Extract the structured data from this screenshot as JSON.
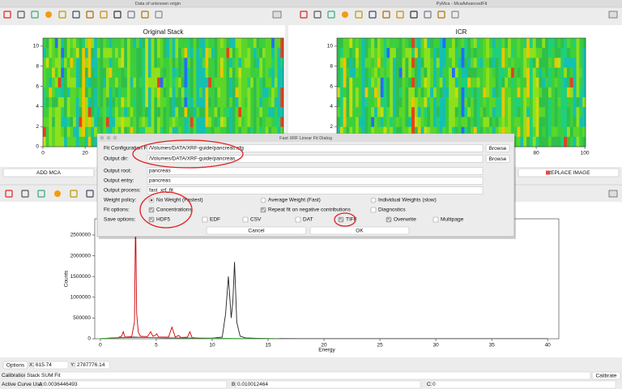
{
  "windows": {
    "left_title": "Data of unknown origin",
    "right_title": "PyMca - McaAdvancedFit"
  },
  "stack_plots": [
    {
      "title": "Original Stack",
      "xlim": [
        0,
        114
      ],
      "xticks": [
        0,
        20
      ],
      "ylim": [
        0,
        10.8
      ],
      "yticks": [
        0,
        2,
        4,
        6,
        8,
        10
      ]
    },
    {
      "title": "ICR",
      "xlim": [
        -2,
        100.3
      ],
      "xticks": [
        80,
        100
      ],
      "ylim": [
        0,
        10.8
      ],
      "yticks": [
        0,
        2,
        4,
        6,
        8,
        10
      ]
    }
  ],
  "buttons": {
    "add_mca": "ADD MCA",
    "replace_image": "REPLACE IMAGE"
  },
  "spectrum": {
    "type": "line",
    "xlabel": "Energy",
    "ylabel": "Counts",
    "xlim": [
      -0.5,
      41
    ],
    "ylim": [
      0,
      2890000
    ],
    "xticks": [
      0,
      5,
      10,
      15,
      20,
      25,
      30,
      35,
      40
    ],
    "yticks": [
      0,
      500000,
      1000000,
      1500000,
      2000000,
      2500000
    ],
    "series": [
      {
        "color": "#222222",
        "x": [
          0,
          1,
          2,
          3,
          4,
          5,
          6,
          7,
          8,
          9,
          10,
          10.9,
          11.2,
          11.45,
          11.7,
          11.85,
          12.0,
          12.2,
          12.5,
          13,
          14,
          15,
          16,
          18,
          20,
          25,
          30,
          35,
          40
        ],
        "values": [
          0,
          20000,
          30000,
          40000,
          30000,
          25000,
          20000,
          18000,
          15000,
          12000,
          15000,
          40000,
          600000,
          1500000,
          500000,
          900000,
          1850000,
          400000,
          60000,
          20000,
          10000,
          5000,
          3000,
          2000,
          1000,
          1000,
          500,
          500,
          0
        ]
      },
      {
        "color": "#cc0000",
        "x": [
          0.8,
          1.5,
          1.9,
          2.05,
          2.2,
          2.8,
          3.05,
          3.15,
          3.25,
          3.32,
          3.4,
          3.6,
          4.2,
          4.5,
          4.7,
          4.9,
          5.05,
          5.2,
          6.1,
          6.4,
          6.7,
          7.0,
          7.2,
          7.8,
          8.0,
          8.2,
          9.0
        ],
        "values": [
          0,
          20000,
          60000,
          170000,
          40000,
          50000,
          400000,
          2890000,
          600000,
          380000,
          150000,
          60000,
          50000,
          170000,
          60000,
          80000,
          120000,
          40000,
          40000,
          280000,
          40000,
          80000,
          30000,
          40000,
          170000,
          30000,
          10000
        ]
      },
      {
        "color": "#33aa33",
        "x": [
          0,
          2,
          4,
          6,
          8,
          10,
          12,
          14,
          16
        ],
        "values": [
          5000,
          25000,
          30000,
          25000,
          20000,
          15000,
          8000,
          3000,
          1000
        ]
      }
    ]
  },
  "dialog": {
    "title": "Fast XRF Linear Fit Dialog",
    "fields": [
      {
        "label": "Fit Configuration File:",
        "value": "/Volumes/DATA/XRF-guide/pancreas.cfg",
        "button": "Browse"
      },
      {
        "label": "Output dir:",
        "value": "/Volumes/DATA/XRF-guide/pancreas",
        "button": "Browse"
      },
      {
        "label": "Output root:",
        "value": "pancreas"
      },
      {
        "label": "Output entry:",
        "value": "pancreas"
      },
      {
        "label": "Output process:",
        "value": "fast_xrf_fit"
      }
    ],
    "option_rows": [
      {
        "label": "Weight policy:",
        "kind": "radio",
        "options": [
          {
            "label": "No Weight (Fastest)",
            "checked": true
          },
          {
            "label": "Average Weight (Fast)",
            "checked": false
          },
          {
            "label": "Individual Weights (slow)",
            "checked": false
          }
        ]
      },
      {
        "label": "Fit options:",
        "kind": "checkbox",
        "options": [
          {
            "label": "Concentrations",
            "checked": true
          },
          {
            "label": "Repeat fit on negative contributions",
            "checked": true
          },
          {
            "label": "Diagnostics",
            "checked": false
          }
        ]
      },
      {
        "label": "Save options:",
        "kind": "checkbox",
        "options": [
          {
            "label": "HDF5",
            "checked": true
          },
          {
            "label": "EDF",
            "checked": false
          },
          {
            "label": "CSV",
            "checked": false
          },
          {
            "label": "DAT",
            "checked": false
          },
          {
            "label": "TIFF",
            "checked": true
          },
          {
            "label": "Overwrite",
            "checked": true
          },
          {
            "label": "Multipage",
            "checked": false
          }
        ]
      }
    ],
    "cancel": "Cancel",
    "ok": "OK"
  },
  "status": {
    "options": "Options",
    "x_label": "X:",
    "x_value": "615.74",
    "y_label": "Y:",
    "y_value": "2787776.14",
    "calibration_label": "Calibration",
    "calibration": "Stack SUM Fit",
    "calibrate": "Calibrate",
    "active_label": "Active Curve Uses",
    "a_label": "A:",
    "a": "0.0036446493",
    "b_label": "B:",
    "b": "0.010012464",
    "c_label": "C:",
    "c": "0"
  }
}
